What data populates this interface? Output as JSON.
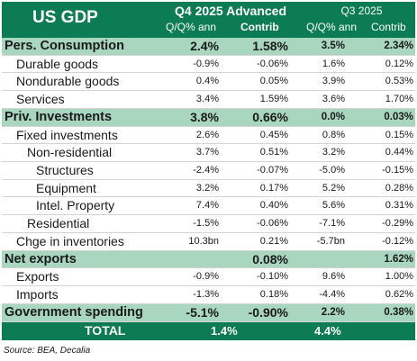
{
  "header": {
    "title": "US GDP",
    "group1": "Q4 2025 Advanced",
    "group2": "Q3 2025",
    "sub": [
      "Q/Q% ann",
      "Contrib",
      "Q/Q% ann",
      "Contrib"
    ]
  },
  "rows": [
    {
      "label": "Pers. Consumption",
      "indent": 0,
      "hl": true,
      "v": [
        "2.4%",
        "1.58%",
        "3.5%",
        "2.34%"
      ]
    },
    {
      "label": "Durable goods",
      "indent": 1,
      "v": [
        "-0.9%",
        "-0.06%",
        "1.6%",
        "0.12%"
      ]
    },
    {
      "label": "Nondurable goods",
      "indent": 1,
      "v": [
        "0.4%",
        "0.05%",
        "3.9%",
        "0.53%"
      ]
    },
    {
      "label": "Services",
      "indent": 1,
      "v": [
        "3.4%",
        "1.59%",
        "3.6%",
        "1.70%"
      ]
    },
    {
      "label": "Priv. Investments",
      "indent": 0,
      "hl": true,
      "v": [
        "3.8%",
        "0.66%",
        "0.0%",
        "0.03%"
      ]
    },
    {
      "label": "Fixed investments",
      "indent": 1,
      "v": [
        "2.6%",
        "0.45%",
        "0.8%",
        "0.15%"
      ]
    },
    {
      "label": "Non-residential",
      "indent": 2,
      "v": [
        "3.7%",
        "0.51%",
        "3.2%",
        "0.44%"
      ]
    },
    {
      "label": "Structures",
      "indent": 3,
      "v": [
        "-2.4%",
        "-0.07%",
        "-5.0%",
        "-0.15%"
      ]
    },
    {
      "label": "Equipment",
      "indent": 3,
      "v": [
        "3.2%",
        "0.17%",
        "5.2%",
        "0.28%"
      ]
    },
    {
      "label": "Intel. Property",
      "indent": 3,
      "v": [
        "7.4%",
        "0.40%",
        "5.6%",
        "0.31%"
      ]
    },
    {
      "label": "Residential",
      "indent": 2,
      "v": [
        "-1.5%",
        "-0.06%",
        "-7.1%",
        "-0.29%"
      ]
    },
    {
      "label": "Chge in inventories",
      "indent": 1,
      "v": [
        "10.3bn",
        "0.21%",
        "-5.7bn",
        "-0.12%"
      ]
    },
    {
      "label": "Net exports",
      "indent": 0,
      "hl": true,
      "v": [
        "",
        "0.08%",
        "",
        "1.62%"
      ]
    },
    {
      "label": "Exports",
      "indent": 1,
      "v": [
        "-0.9%",
        "-0.10%",
        "9.6%",
        "1.00%"
      ]
    },
    {
      "label": "Imports",
      "indent": 1,
      "v": [
        "-1.3%",
        "0.18%",
        "-4.4%",
        "0.62%"
      ]
    },
    {
      "label": "Government spending",
      "indent": 0,
      "hl": true,
      "v": [
        "-5.1%",
        "-0.90%",
        "2.2%",
        "0.38%"
      ]
    }
  ],
  "total": {
    "label": "TOTAL",
    "q4": "1.4%",
    "q3": "4.4%"
  },
  "source": "Source: BEA, Decalia",
  "colors": {
    "header_green": "#0c7c55",
    "highlight_green": "#a9d6bf"
  }
}
